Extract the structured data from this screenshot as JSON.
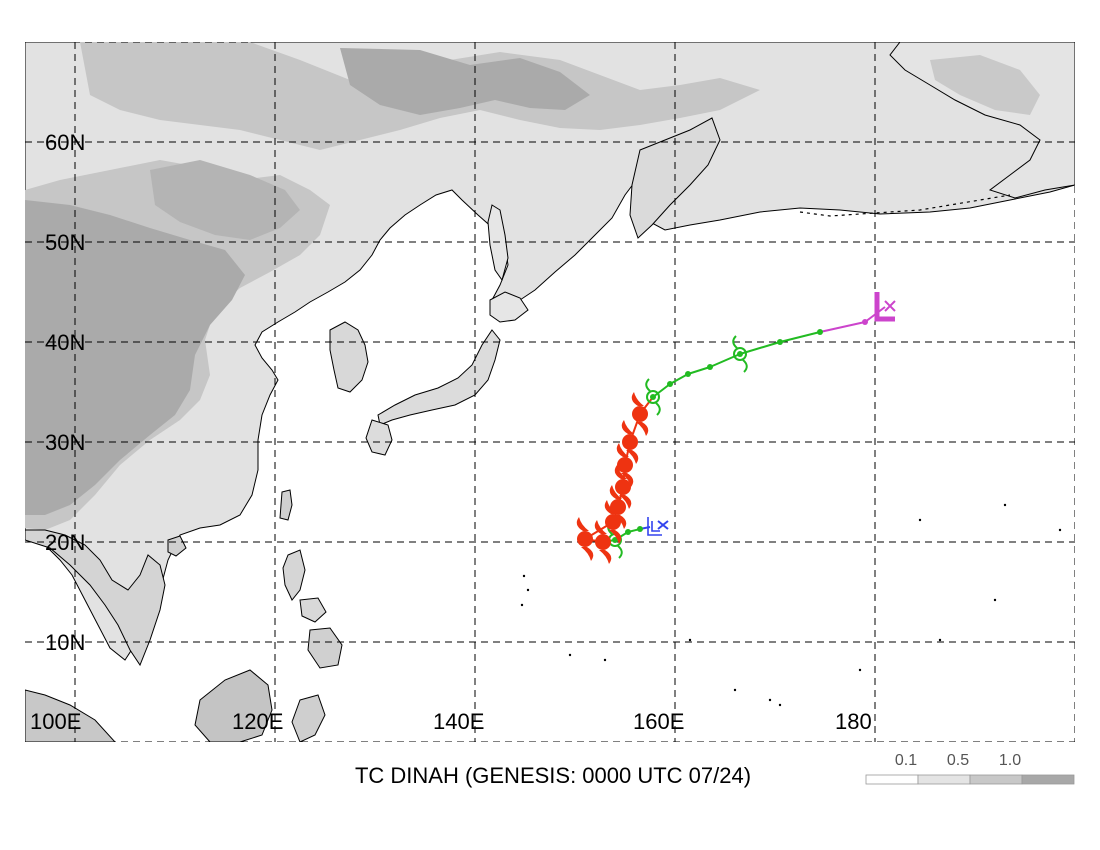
{
  "map": {
    "title": "TC DINAH (GENESIS: 0000 UTC 07/24)",
    "lat_labels": [
      "60N",
      "50N",
      "40N",
      "30N",
      "20N",
      "10N"
    ],
    "lon_labels": [
      "100E",
      "120E",
      "140E",
      "160E",
      "180"
    ],
    "extent": {
      "lon_min": 100,
      "lon_max": 205,
      "lat_min": 0,
      "lat_max": 70
    },
    "grid": "dashed, 10 degree"
  },
  "legend": {
    "labels": [
      "0.1",
      "0.5",
      "1.0"
    ],
    "colors": [
      "#ffffff",
      "#e4e4e4",
      "#c8c8c8",
      "#a8a8a8"
    ]
  },
  "colors": {
    "land_light": "#e2e2e2",
    "land_mid": "#c6c6c6",
    "land_dark": "#a9a9a9",
    "ocean": "#ffffff",
    "track_green": "#22bb22",
    "track_red": "#ee3311",
    "genesis_blue": "#3344ee",
    "dissipation_magenta": "#cc44cc"
  },
  "track": {
    "genesis_point": {
      "lon": 157.5,
      "lat": 21.5
    },
    "dissipation_point": {
      "lon": 181,
      "lat": 43.5
    },
    "points": [
      {
        "lon": 156.5,
        "lat": 21.3,
        "stage": "depression"
      },
      {
        "lon": 155.3,
        "lat": 21.0,
        "stage": "depression"
      },
      {
        "lon": 154.0,
        "lat": 20.2,
        "stage": "storm"
      },
      {
        "lon": 152.8,
        "lat": 20.0,
        "stage": "typhoon"
      },
      {
        "lon": 151.0,
        "lat": 20.3,
        "stage": "typhoon"
      },
      {
        "lon": 153.8,
        "lat": 22.0,
        "stage": "typhoon"
      },
      {
        "lon": 154.3,
        "lat": 23.5,
        "stage": "typhoon"
      },
      {
        "lon": 154.8,
        "lat": 25.5,
        "stage": "typhoon"
      },
      {
        "lon": 155.0,
        "lat": 27.7,
        "stage": "typhoon"
      },
      {
        "lon": 155.5,
        "lat": 30.0,
        "stage": "typhoon"
      },
      {
        "lon": 156.5,
        "lat": 32.8,
        "stage": "typhoon"
      },
      {
        "lon": 157.8,
        "lat": 34.5,
        "stage": "storm"
      },
      {
        "lon": 159.5,
        "lat": 35.8,
        "stage": "storm"
      },
      {
        "lon": 161.3,
        "lat": 36.8,
        "stage": "storm"
      },
      {
        "lon": 163.5,
        "lat": 37.5,
        "stage": "storm"
      },
      {
        "lon": 166.5,
        "lat": 38.8,
        "stage": "storm"
      },
      {
        "lon": 170.5,
        "lat": 40.0,
        "stage": "storm"
      },
      {
        "lon": 174.5,
        "lat": 41.0,
        "stage": "storm"
      },
      {
        "lon": 179.0,
        "lat": 42.0,
        "stage": "extratropical"
      }
    ]
  }
}
